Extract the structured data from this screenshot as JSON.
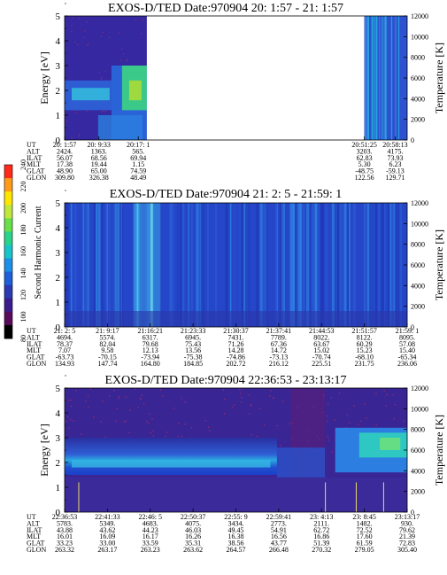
{
  "colorbar": {
    "label": "Second Harmonic Current",
    "ticks": [
      "80",
      "100",
      "120",
      "140",
      "160",
      "180",
      "200",
      "220",
      "240"
    ],
    "colors": [
      "#000000",
      "#5a0a5a",
      "#3a1c8c",
      "#2a3ab0",
      "#1d5fd8",
      "#1c8fe6",
      "#19c4c9",
      "#29d48a",
      "#69e04a",
      "#bfe83a",
      "#ffe600",
      "#ff9a1a",
      "#ff2a1a"
    ]
  },
  "chart_data": [
    {
      "type": "heatmap",
      "title": "EXOS-D/TED   Date:970904  20: 1:57 - 21: 1:57",
      "ylabel": "Energy [eV]",
      "y2label": "Temperature [K]",
      "ylim": [
        0,
        5
      ],
      "y2lim": [
        0,
        12000
      ],
      "yticks": [
        "0",
        "1",
        "2",
        "3",
        "4",
        "5"
      ],
      "y2ticks": [
        "0",
        "2000",
        "4000",
        "6000",
        "8000",
        "10000",
        "12000"
      ],
      "grid": false,
      "data_gap": [
        0.24,
        0.875
      ],
      "table": {
        "row_labels": [
          "UT",
          "ALT",
          "ILAT",
          "MLT",
          "GLAT",
          "GLON"
        ],
        "columns": [
          {
            "pos": 0.0,
            "values": [
              "20: 1:57",
              "2424.",
              "56.07",
              "17.38",
              "48.90",
              "309.80"
            ]
          },
          {
            "pos": 0.1,
            "values": [
              "20: 9:33",
              "1363.",
              "68.56",
              "19.44",
              "65.00",
              "326.38"
            ]
          },
          {
            "pos": 0.215,
            "values": [
              "20:17: 1",
              "565.",
              "69.94",
              "1.15",
              "74.59",
              "48.49"
            ]
          },
          {
            "pos": 0.875,
            "values": [
              "20:51:25",
              "3203.",
              "62.83",
              "5.30",
              "-48.75",
              "122.56"
            ]
          },
          {
            "pos": 0.965,
            "values": [
              "20:58:13",
              "4175.",
              "73.93",
              "6.23",
              "-59.13",
              "129.71"
            ]
          }
        ]
      }
    },
    {
      "type": "heatmap",
      "title": "EXOS-D/TED   Date:970904  21: 2: 5 - 21:59: 1",
      "ylabel": "",
      "y2label": "Temperature [K]",
      "ylim": [
        0,
        5
      ],
      "y2lim": [
        0,
        12000
      ],
      "yticks": [
        "0",
        "1",
        "2",
        "3",
        "4",
        "5"
      ],
      "y2ticks": [
        "0",
        "2000",
        "4000",
        "6000",
        "8000",
        "10000",
        "12000"
      ],
      "grid": false,
      "table": {
        "row_labels": [
          "UT",
          "ALT",
          "ILAT",
          "MLT",
          "GLAT",
          "GLON"
        ],
        "columns": [
          {
            "pos": 0.0,
            "values": [
              "21: 2: 5",
              "4694.",
              "78.37",
              "7.07",
              "-63.73",
              "134.93"
            ]
          },
          {
            "pos": 0.125,
            "values": [
              "21: 9:17",
              "5574.",
              "82.04",
              "9.58",
              "-70.15",
              "147.74"
            ]
          },
          {
            "pos": 0.25,
            "values": [
              "21:16:21",
              "6317.",
              "79.68",
              "12.13",
              "-73.94",
              "164.80"
            ]
          },
          {
            "pos": 0.375,
            "values": [
              "21:23:33",
              "6945.",
              "75.43",
              "13.56",
              "-75.38",
              "184.85"
            ]
          },
          {
            "pos": 0.5,
            "values": [
              "21:30:37",
              "7431.",
              "71.26",
              "14.28",
              "-74.86",
              "202.72"
            ]
          },
          {
            "pos": 0.625,
            "values": [
              "21:37:41",
              "7789.",
              "67.36",
              "14.72",
              "-73.13",
              "216.12"
            ]
          },
          {
            "pos": 0.75,
            "values": [
              "21:44:53",
              "8022.",
              "63.67",
              "15.02",
              "-70.74",
              "225.51"
            ]
          },
          {
            "pos": 0.875,
            "values": [
              "21:51:57",
              "8122.",
              "60.29",
              "15.23",
              "-68.10",
              "231.75"
            ]
          },
          {
            "pos": 1.0,
            "values": [
              "21:59: 1",
              "8095.",
              "57.08",
              "15.40",
              "-65.34",
              "236.06"
            ]
          }
        ]
      }
    },
    {
      "type": "heatmap",
      "title": "EXOS-D/TED   Date:970904  22:36:53 - 23:13:17",
      "ylabel": "Energy [eV]",
      "y2label": "Temperature [K]",
      "ylim": [
        0,
        5
      ],
      "y2lim": [
        0,
        12000
      ],
      "yticks": [
        "0",
        "1",
        "2",
        "3",
        "4",
        "5"
      ],
      "y2ticks": [
        "0",
        "2000",
        "4000",
        "6000",
        "8000",
        "10000",
        "12000"
      ],
      "grid": false,
      "table": {
        "row_labels": [
          "UT",
          "ALT",
          "ILAT",
          "MLT",
          "GLAT",
          "GLON"
        ],
        "columns": [
          {
            "pos": 0.0,
            "values": [
              "22:36:53",
              "5783.",
              "43.88",
              "16.01",
              "33.23",
              "263.32"
            ]
          },
          {
            "pos": 0.125,
            "values": [
              "22:41:33",
              "5349.",
              "43.62",
              "16.09",
              "33.00",
              "263.17"
            ]
          },
          {
            "pos": 0.25,
            "values": [
              "22:46: 5",
              "4683.",
              "44.23",
              "16.17",
              "33.59",
              "263.23"
            ]
          },
          {
            "pos": 0.375,
            "values": [
              "22:50:37",
              "4075.",
              "46.03",
              "16.26",
              "35.31",
              "263.62"
            ]
          },
          {
            "pos": 0.5,
            "values": [
              "22:55: 9",
              "3434.",
              "49.45",
              "16.38",
              "38.56",
              "264.57"
            ]
          },
          {
            "pos": 0.625,
            "values": [
              "22:59:41",
              "2773.",
              "54.91",
              "16.56",
              "43.77",
              "266.48"
            ]
          },
          {
            "pos": 0.75,
            "values": [
              "23: 4:13",
              "2111.",
              "62.72",
              "16.86",
              "51.39",
              "270.32"
            ]
          },
          {
            "pos": 0.875,
            "values": [
              "23: 8:45",
              "1482.",
              "72.52",
              "17.60",
              "61.59",
              "279.05"
            ]
          },
          {
            "pos": 1.0,
            "values": [
              "23:13:17",
              "930.",
              "79.62",
              "21.39",
              "72.83",
              "305.40"
            ]
          }
        ]
      }
    }
  ]
}
